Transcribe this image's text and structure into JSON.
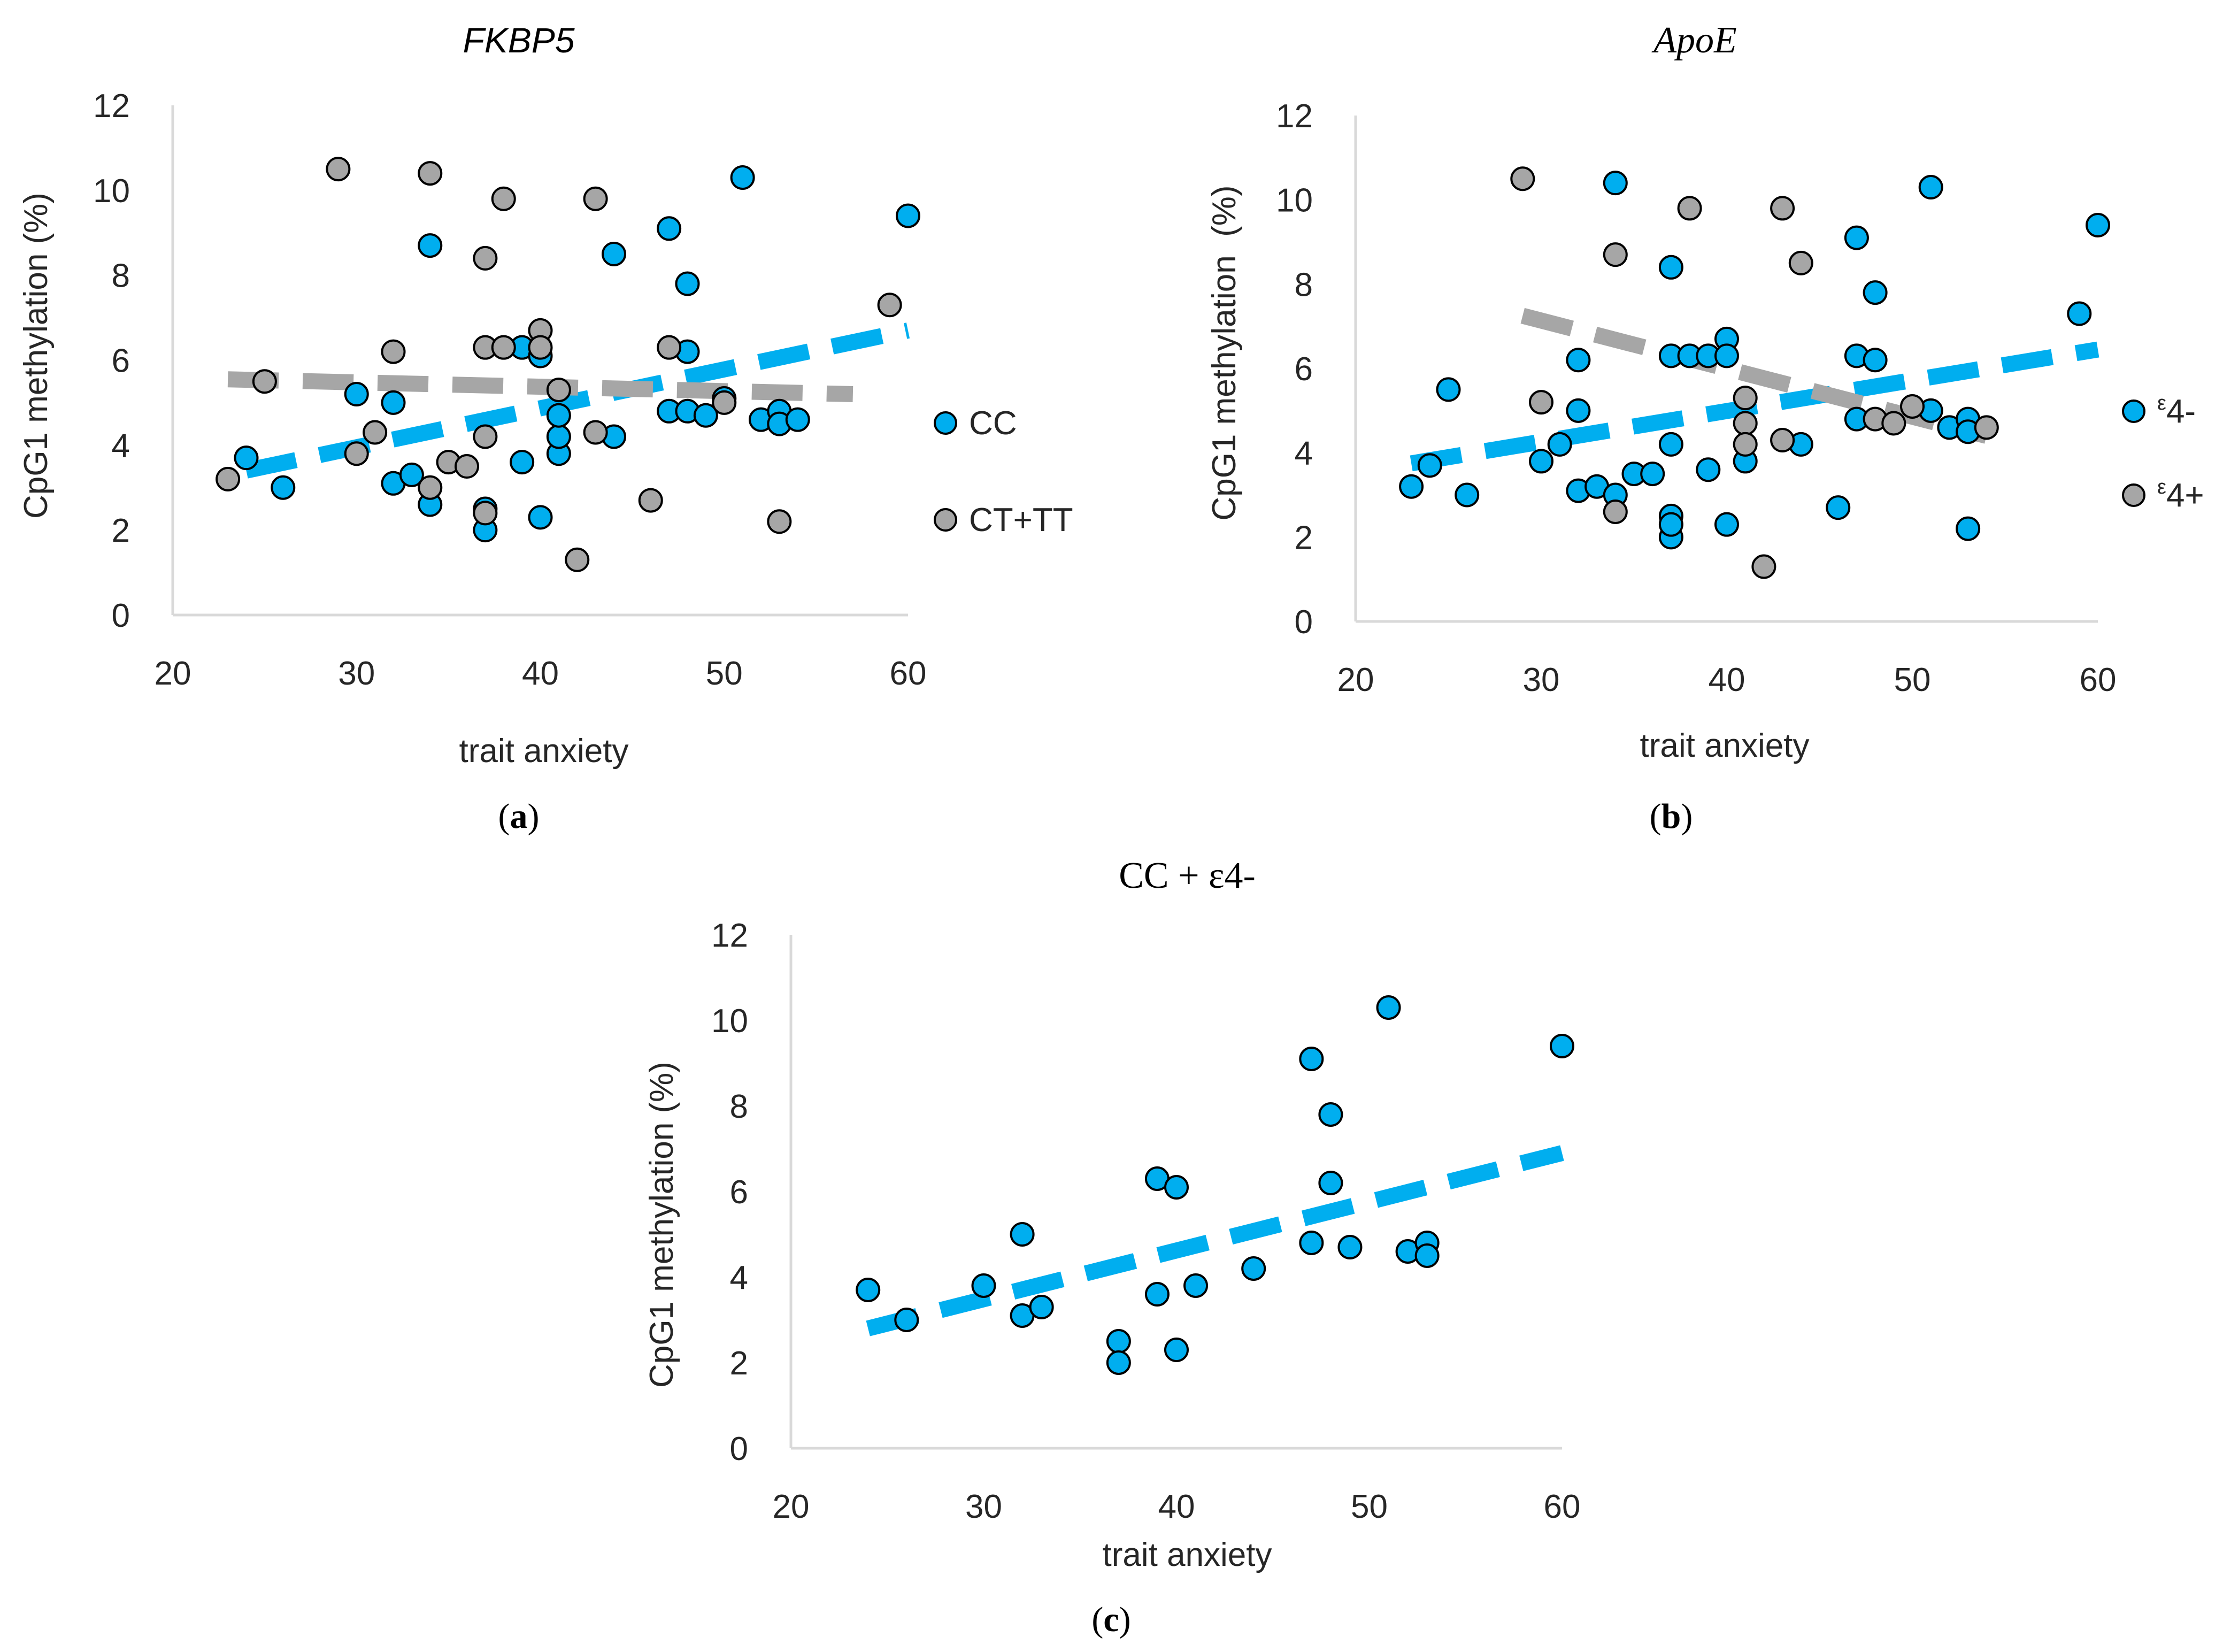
{
  "figure": {
    "colors": {
      "cc_fill": "#00aeef",
      "ct_fill": "#a6a6a6",
      "cc_trend": "#00aeef",
      "ct_trend": "#a6a6a6",
      "marker_stroke": "#000000",
      "axis": "#d9d9d9",
      "text": "#262626"
    }
  },
  "chart_data": [
    {
      "panel_label": "(a)",
      "label_parts": {
        "open": "(",
        "letter": "a",
        "close": ")"
      },
      "type": "scatter",
      "title": "FKBP5",
      "title_style": "italic",
      "xlabel": "trait anxiety",
      "ylabel": "CpG1 methylation (%)",
      "xlim": [
        20,
        60
      ],
      "ylim": [
        0,
        12
      ],
      "xticks": [
        20,
        30,
        40,
        50,
        60
      ],
      "yticks": [
        0,
        2,
        4,
        6,
        8,
        10,
        12
      ],
      "series": [
        {
          "name": "CC",
          "color": "#00aeef",
          "points": [
            [
              24,
              3.7
            ],
            [
              26,
              3.0
            ],
            [
              30,
              5.2
            ],
            [
              32,
              5.0
            ],
            [
              32,
              3.1
            ],
            [
              33,
              3.3
            ],
            [
              34,
              2.6
            ],
            [
              34,
              8.7
            ],
            [
              37,
              2.5
            ],
            [
              37,
              2.0
            ],
            [
              39,
              6.3
            ],
            [
              39,
              3.6
            ],
            [
              40,
              6.1
            ],
            [
              40,
              2.3
            ],
            [
              41,
              3.8
            ],
            [
              41,
              4.2
            ],
            [
              41,
              4.7
            ],
            [
              44,
              8.5
            ],
            [
              44,
              4.2
            ],
            [
              47,
              9.1
            ],
            [
              47,
              4.8
            ],
            [
              48,
              7.8
            ],
            [
              48,
              6.2
            ],
            [
              48,
              4.8
            ],
            [
              49,
              4.7
            ],
            [
              50,
              5.1
            ],
            [
              51,
              10.3
            ],
            [
              52,
              4.6
            ],
            [
              53,
              4.8
            ],
            [
              53,
              4.5
            ],
            [
              54,
              4.6
            ],
            [
              60,
              9.4
            ]
          ],
          "trend": [
            [
              24,
              3.4
            ],
            [
              60,
              6.7
            ]
          ]
        },
        {
          "name": "CT+TT",
          "color": "#a6a6a6",
          "points": [
            [
              23,
              3.2
            ],
            [
              25,
              5.5
            ],
            [
              29,
              10.5
            ],
            [
              30,
              3.8
            ],
            [
              31,
              4.3
            ],
            [
              32,
              6.2
            ],
            [
              34,
              10.4
            ],
            [
              34,
              3.0
            ],
            [
              35,
              3.6
            ],
            [
              36,
              3.5
            ],
            [
              37,
              8.4
            ],
            [
              37,
              6.3
            ],
            [
              37,
              4.2
            ],
            [
              37,
              2.4
            ],
            [
              38,
              9.8
            ],
            [
              38,
              6.3
            ],
            [
              40,
              6.7
            ],
            [
              40,
              6.3
            ],
            [
              41,
              5.3
            ],
            [
              43,
              9.8
            ],
            [
              43,
              4.3
            ],
            [
              46,
              2.7
            ],
            [
              47,
              6.3
            ],
            [
              50,
              5.0
            ],
            [
              53,
              2.2
            ],
            [
              59,
              7.3
            ],
            [
              42,
              1.3
            ]
          ],
          "trend": [
            [
              23,
              5.55
            ],
            [
              57,
              5.2
            ]
          ]
        }
      ],
      "legend": [
        "CC",
        "CT+TT"
      ],
      "legend_position": "right"
    },
    {
      "panel_label": "(b)",
      "label_parts": {
        "open": "(",
        "letter": "b",
        "close": ")"
      },
      "type": "scatter",
      "title": "ApoE",
      "title_style": "italic-serif",
      "xlabel": "trait anxiety",
      "ylabel": "CpG1 methylation  (%)",
      "xlim": [
        20,
        60
      ],
      "ylim": [
        0,
        12
      ],
      "xticks": [
        20,
        30,
        40,
        50,
        60
      ],
      "yticks": [
        0,
        2,
        4,
        6,
        8,
        10,
        12
      ],
      "series": [
        {
          "name": "ε4-",
          "legend_prefix": "ε",
          "legend_suffix": "4-",
          "color": "#00aeef",
          "points": [
            [
              23,
              3.2
            ],
            [
              24,
              3.7
            ],
            [
              25,
              5.5
            ],
            [
              26,
              3.0
            ],
            [
              30,
              3.8
            ],
            [
              31,
              4.2
            ],
            [
              32,
              6.2
            ],
            [
              32,
              5.0
            ],
            [
              32,
              3.1
            ],
            [
              33,
              3.2
            ],
            [
              34,
              10.4
            ],
            [
              34,
              3.0
            ],
            [
              35,
              3.5
            ],
            [
              36,
              3.5
            ],
            [
              37,
              8.4
            ],
            [
              37,
              6.3
            ],
            [
              37,
              4.2
            ],
            [
              37,
              2.5
            ],
            [
              37,
              2.0
            ],
            [
              37,
              2.3
            ],
            [
              38,
              6.3
            ],
            [
              39,
              6.3
            ],
            [
              39,
              3.6
            ],
            [
              40,
              6.7
            ],
            [
              40,
              6.3
            ],
            [
              40,
              2.3
            ],
            [
              41,
              3.8
            ],
            [
              44,
              4.2
            ],
            [
              46,
              2.7
            ],
            [
              47,
              9.1
            ],
            [
              47,
              6.3
            ],
            [
              47,
              4.8
            ],
            [
              48,
              7.8
            ],
            [
              48,
              6.2
            ],
            [
              51,
              10.3
            ],
            [
              51,
              5.0
            ],
            [
              52,
              4.6
            ],
            [
              53,
              4.8
            ],
            [
              53,
              4.5
            ],
            [
              53,
              2.2
            ],
            [
              59,
              7.3
            ],
            [
              60,
              9.4
            ]
          ],
          "trend": [
            [
              23,
              3.75
            ],
            [
              60,
              6.45
            ]
          ]
        },
        {
          "name": "ε4+",
          "legend_prefix": "ε",
          "legend_suffix": "4+",
          "color": "#a6a6a6",
          "points": [
            [
              29,
              10.5
            ],
            [
              30,
              5.2
            ],
            [
              34,
              8.7
            ],
            [
              34,
              2.6
            ],
            [
              38,
              9.8
            ],
            [
              41,
              5.3
            ],
            [
              41,
              4.7
            ],
            [
              41,
              4.2
            ],
            [
              42,
              1.3
            ],
            [
              43,
              9.8
            ],
            [
              43,
              4.3
            ],
            [
              44,
              8.5
            ],
            [
              48,
              4.8
            ],
            [
              49,
              4.7
            ],
            [
              50,
              5.1
            ],
            [
              54,
              4.6
            ]
          ],
          "trend": [
            [
              29,
              7.25
            ],
            [
              54,
              4.4
            ]
          ]
        }
      ],
      "legend": [
        "ε4-",
        "ε4+"
      ],
      "legend_position": "right"
    },
    {
      "panel_label": "(c)",
      "label_parts": {
        "open": "(",
        "letter": "c",
        "close": ")"
      },
      "type": "scatter",
      "title": "CC + ε4-",
      "title_style": "serif",
      "xlabel": "trait anxiety",
      "ylabel": "CpG1 methylation (%)",
      "xlim": [
        20,
        60
      ],
      "ylim": [
        0,
        12
      ],
      "xticks": [
        20,
        30,
        40,
        50,
        60
      ],
      "yticks": [
        0,
        2,
        4,
        6,
        8,
        10,
        12
      ],
      "series": [
        {
          "name": "CC + ε4-",
          "color": "#00aeef",
          "points": [
            [
              24,
              3.7
            ],
            [
              26,
              3.0
            ],
            [
              30,
              3.8
            ],
            [
              32,
              5.0
            ],
            [
              32,
              3.1
            ],
            [
              33,
              3.3
            ],
            [
              37,
              2.5
            ],
            [
              37,
              2.0
            ],
            [
              39,
              6.3
            ],
            [
              39,
              3.6
            ],
            [
              40,
              6.1
            ],
            [
              40,
              2.3
            ],
            [
              41,
              3.8
            ],
            [
              44,
              4.2
            ],
            [
              47,
              9.1
            ],
            [
              47,
              4.8
            ],
            [
              48,
              7.8
            ],
            [
              48,
              6.2
            ],
            [
              49,
              4.7
            ],
            [
              51,
              10.3
            ],
            [
              52,
              4.6
            ],
            [
              53,
              4.8
            ],
            [
              53,
              4.5
            ],
            [
              60,
              9.4
            ]
          ],
          "trend": [
            [
              24,
              2.8
            ],
            [
              60,
              6.9
            ]
          ]
        }
      ],
      "legend": [],
      "legend_position": "none"
    }
  ]
}
